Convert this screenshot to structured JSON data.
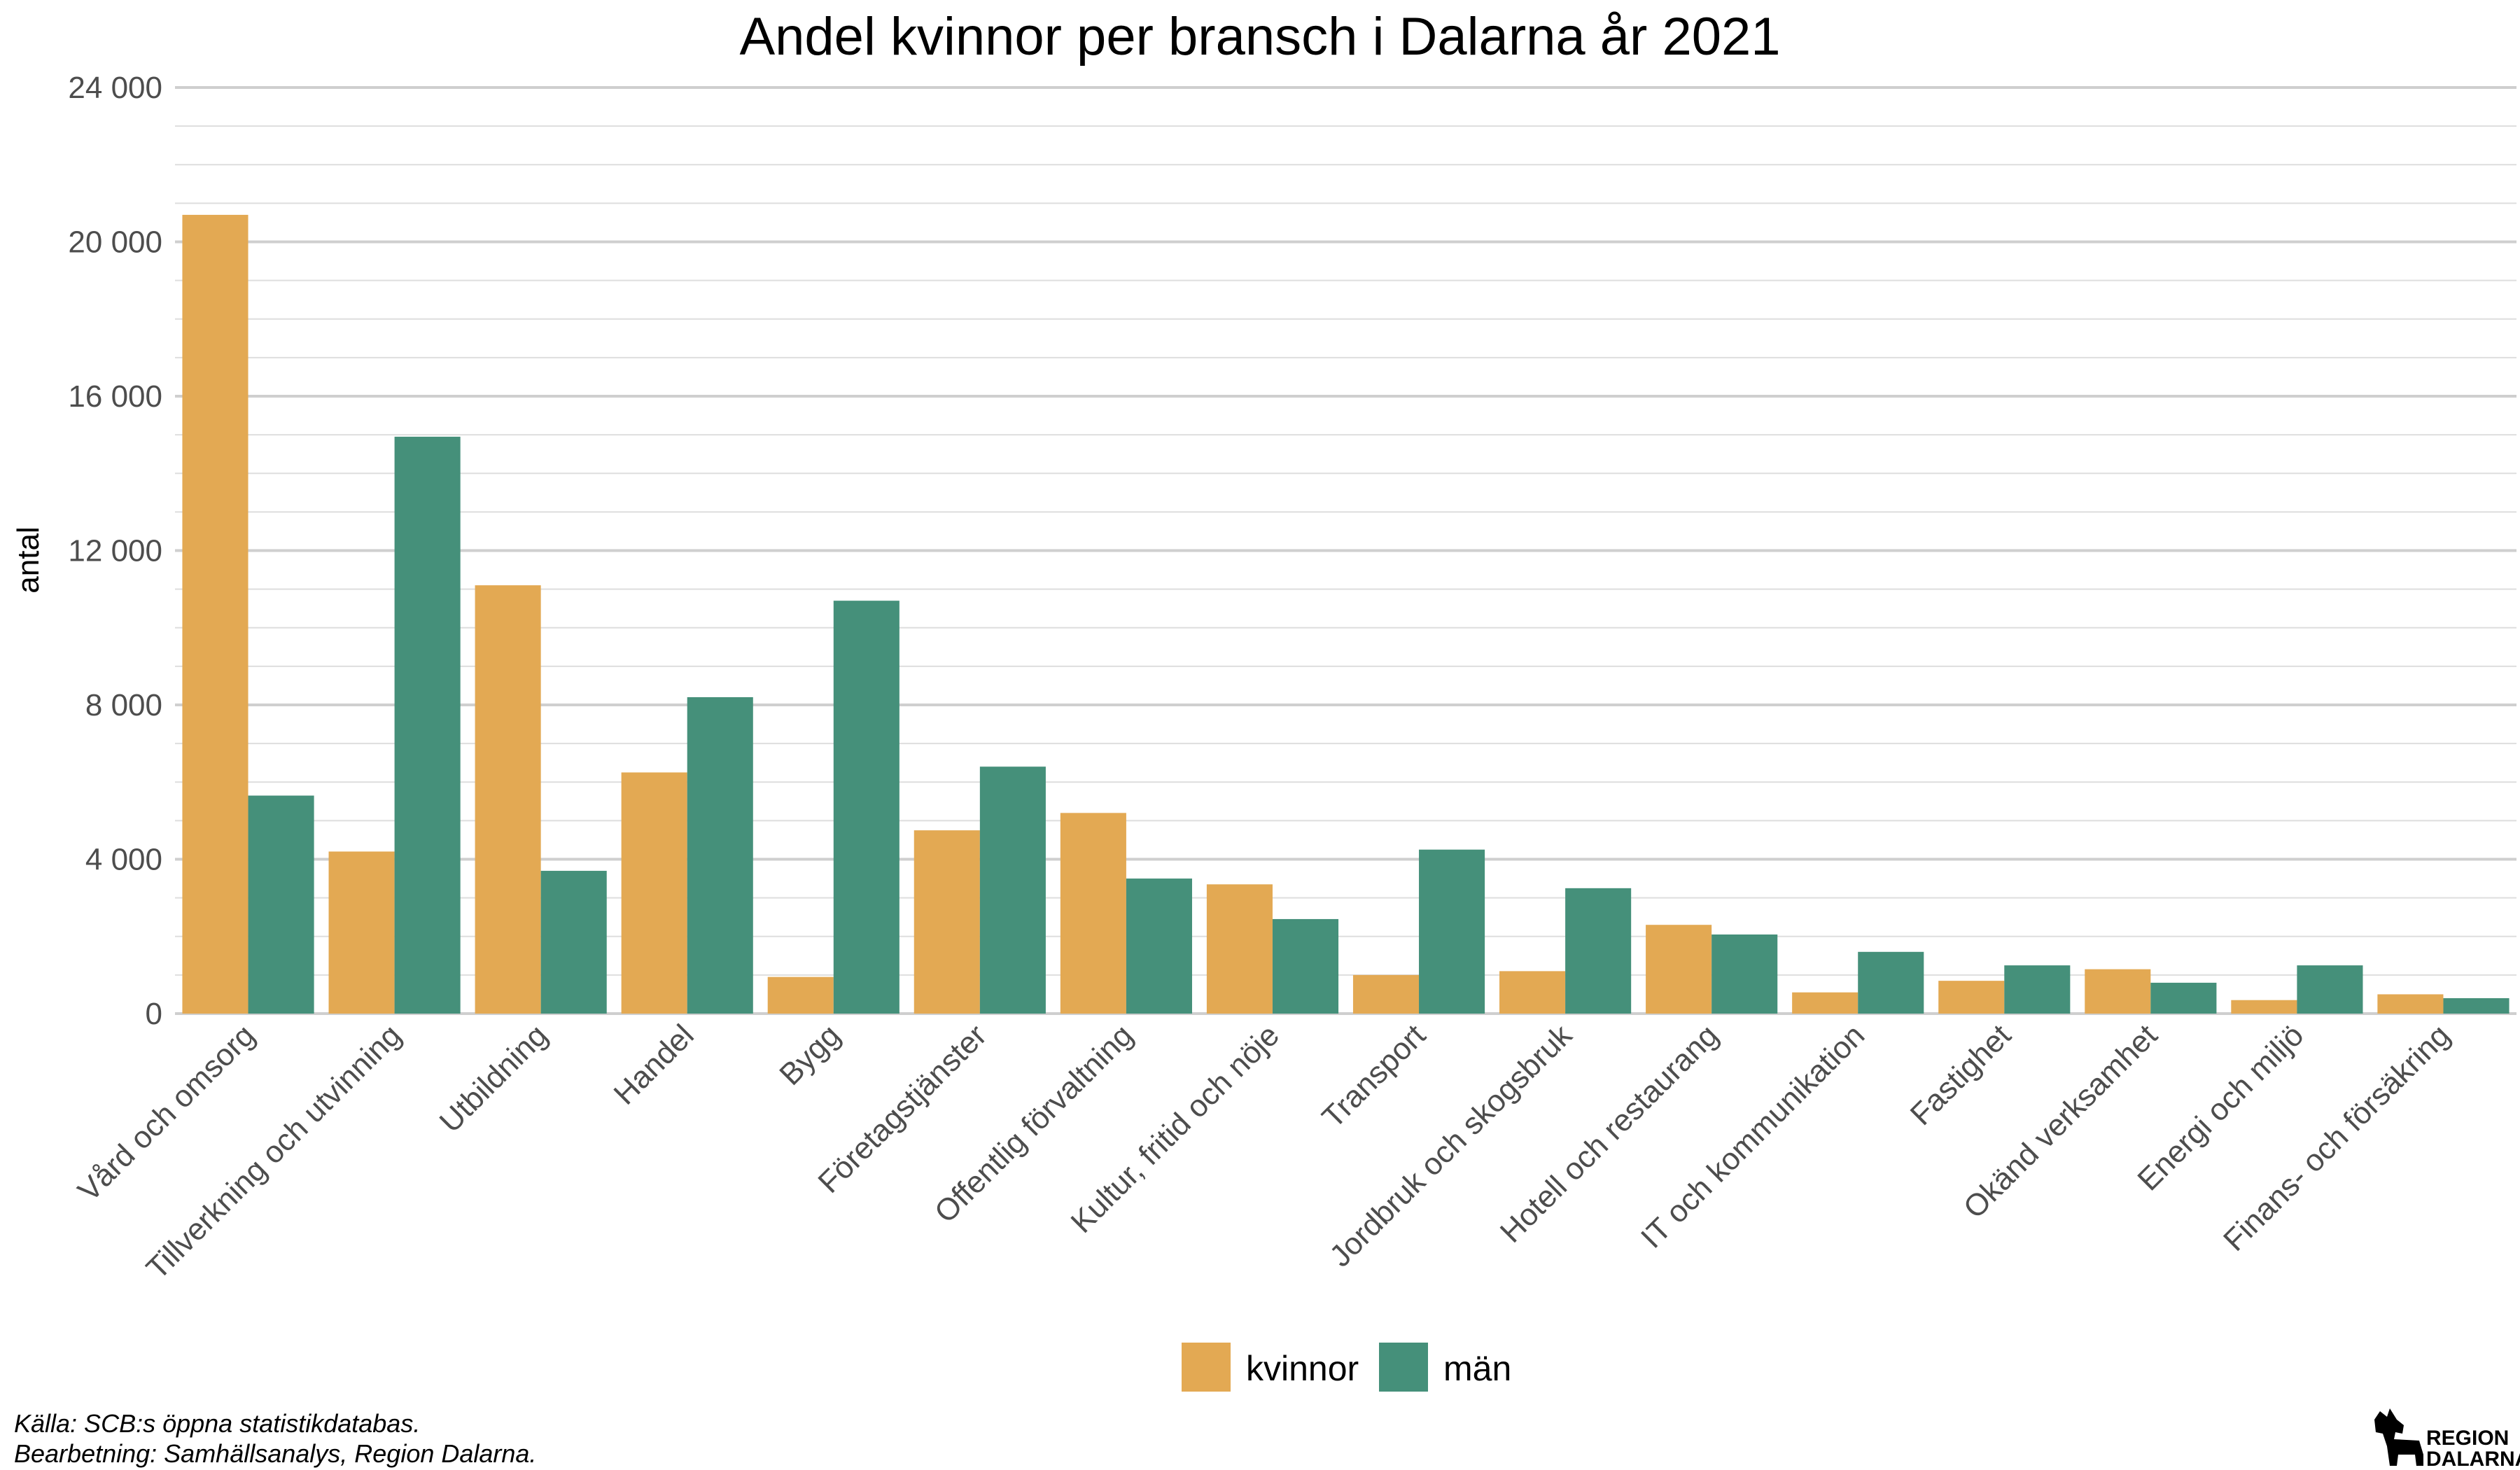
{
  "chart_data": {
    "type": "bar",
    "title": "Andel kvinnor per bransch i Dalarna år 2021",
    "ylabel": "antal",
    "xlabel": "",
    "ylim": [
      0,
      24000
    ],
    "yticks": [
      0,
      4000,
      8000,
      12000,
      16000,
      20000,
      24000
    ],
    "ytick_labels": [
      "0",
      "4 000",
      "8 000",
      "12 000",
      "16 000",
      "20 000",
      "24 000"
    ],
    "grid": true,
    "legend_position": "bottom",
    "categories": [
      "Vård och omsorg",
      "Tillverkning och utvinning",
      "Utbildning",
      "Handel",
      "Bygg",
      "Företagstjänster",
      "Offentlig förvaltning",
      "Kultur, fritid och nöje",
      "Transport",
      "Jordbruk och skogsbruk",
      "Hotell och restaurang",
      "IT och kommunikation",
      "Fastighet",
      "Okänd verksamhet",
      "Energi och miljö",
      "Finans- och försäkring"
    ],
    "series": [
      {
        "name": "kvinnor",
        "color": "#E3A953",
        "values": [
          20700,
          4200,
          11100,
          6250,
          950,
          4750,
          5200,
          3350,
          1000,
          1100,
          2300,
          550,
          850,
          1150,
          350,
          500
        ]
      },
      {
        "name": "män",
        "color": "#45907A",
        "values": [
          5650,
          14950,
          3700,
          8200,
          10700,
          6400,
          3500,
          2450,
          4250,
          3250,
          2050,
          1600,
          1250,
          800,
          1250,
          400
        ]
      }
    ]
  },
  "caption": {
    "line1": "Källa: SCB:s öppna statistikdatabas.",
    "line2": "Bearbetning: Samhällsanalys, Region Dalarna."
  },
  "logo": {
    "line1": "REGION",
    "line2": "DALARNA",
    "icon": "dala-horse-icon"
  }
}
